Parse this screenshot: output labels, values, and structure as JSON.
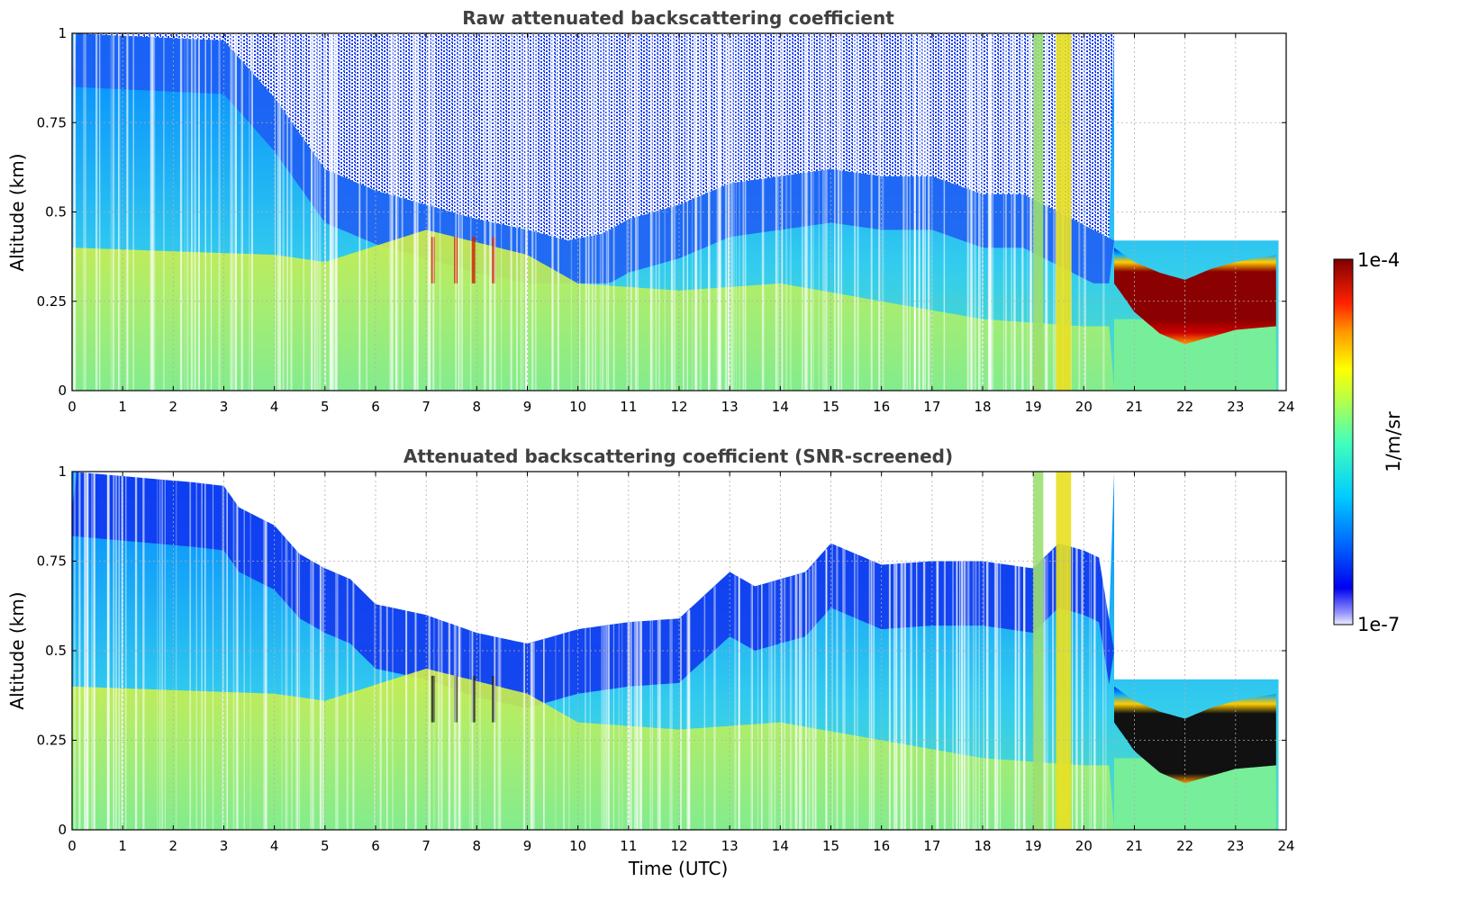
{
  "chart_data": [
    {
      "type": "heatmap",
      "panel": "top",
      "title": "Raw attenuated backscattering coefficient",
      "xlabel": "",
      "ylabel": "Altitude (km)",
      "xlim": [
        0,
        24
      ],
      "ylim": [
        0,
        1
      ],
      "xticks": [
        "0",
        "1",
        "2",
        "3",
        "4",
        "5",
        "6",
        "7",
        "8",
        "9",
        "10",
        "11",
        "12",
        "13",
        "14",
        "15",
        "16",
        "17",
        "18",
        "19",
        "20",
        "21",
        "22",
        "23",
        "24"
      ],
      "yticks": [
        "0",
        "0.25",
        "0.5",
        "0.75",
        "1"
      ],
      "grid": true,
      "noise_top": [
        [
          0,
          1.0
        ],
        [
          3,
          0.98
        ],
        [
          4,
          0.82
        ],
        [
          5,
          0.62
        ],
        [
          6,
          0.56
        ],
        [
          7,
          0.52
        ],
        [
          8,
          0.48
        ],
        [
          9,
          0.45
        ],
        [
          9.8,
          0.42
        ],
        [
          10.5,
          0.44
        ],
        [
          11,
          0.48
        ],
        [
          12,
          0.52
        ],
        [
          13,
          0.58
        ],
        [
          14,
          0.6
        ],
        [
          15,
          0.62
        ],
        [
          16,
          0.6
        ],
        [
          17,
          0.6
        ],
        [
          18,
          0.55
        ],
        [
          18.8,
          0.55
        ],
        [
          19.5,
          0.5
        ],
        [
          20.6,
          0.42
        ]
      ],
      "mixed_layer_top": [
        [
          0,
          0.4
        ],
        [
          4,
          0.38
        ],
        [
          5,
          0.36
        ],
        [
          7,
          0.45
        ],
        [
          9,
          0.38
        ],
        [
          10,
          0.3
        ],
        [
          12,
          0.28
        ],
        [
          14,
          0.3
        ],
        [
          16,
          0.25
        ],
        [
          18,
          0.2
        ],
        [
          20,
          0.18
        ]
      ],
      "cloud": {
        "x_start": 20.6,
        "x_end": 23.8,
        "base": [
          [
            20.6,
            0.3
          ],
          [
            21,
            0.22
          ],
          [
            21.5,
            0.16
          ],
          [
            22,
            0.13
          ],
          [
            22.5,
            0.15
          ],
          [
            23,
            0.17
          ],
          [
            23.8,
            0.18
          ]
        ],
        "top": [
          [
            20.6,
            0.4
          ],
          [
            21,
            0.36
          ],
          [
            21.5,
            0.33
          ],
          [
            22,
            0.31
          ],
          [
            22.5,
            0.34
          ],
          [
            23,
            0.36
          ],
          [
            23.8,
            0.38
          ]
        ]
      }
    },
    {
      "type": "heatmap",
      "panel": "bottom",
      "title": "Attenuated backscattering coefficient (SNR-screened)",
      "xlabel": "Time (UTC)",
      "ylabel": "Altitude (km)",
      "xlim": [
        0,
        24
      ],
      "ylim": [
        0,
        1
      ],
      "xticks": [
        "0",
        "1",
        "2",
        "3",
        "4",
        "5",
        "6",
        "7",
        "8",
        "9",
        "10",
        "11",
        "12",
        "13",
        "14",
        "15",
        "16",
        "17",
        "18",
        "19",
        "20",
        "21",
        "22",
        "23",
        "24"
      ],
      "yticks": [
        "0",
        "0.25",
        "0.5",
        "0.75",
        "1"
      ],
      "grid": true,
      "screen_top": [
        [
          0,
          1.0
        ],
        [
          2.4,
          0.97
        ],
        [
          3,
          0.96
        ],
        [
          3.3,
          0.9
        ],
        [
          4,
          0.85
        ],
        [
          4.5,
          0.77
        ],
        [
          5,
          0.73
        ],
        [
          5.5,
          0.7
        ],
        [
          6,
          0.63
        ],
        [
          7,
          0.6
        ],
        [
          8,
          0.55
        ],
        [
          9,
          0.52
        ],
        [
          10,
          0.56
        ],
        [
          11,
          0.58
        ],
        [
          12,
          0.59
        ],
        [
          13,
          0.72
        ],
        [
          13.5,
          0.68
        ],
        [
          14,
          0.7
        ],
        [
          14.5,
          0.72
        ],
        [
          15,
          0.8
        ],
        [
          16,
          0.74
        ],
        [
          17,
          0.75
        ],
        [
          18,
          0.75
        ],
        [
          19,
          0.73
        ],
        [
          19.5,
          0.8
        ],
        [
          20,
          0.78
        ],
        [
          20.3,
          0.76
        ],
        [
          20.6,
          0.5
        ]
      ],
      "mixed_layer_top": [
        [
          0,
          0.4
        ],
        [
          4,
          0.38
        ],
        [
          5,
          0.36
        ],
        [
          7,
          0.45
        ],
        [
          9,
          0.38
        ],
        [
          10,
          0.3
        ],
        [
          12,
          0.28
        ],
        [
          14,
          0.3
        ],
        [
          16,
          0.25
        ],
        [
          18,
          0.2
        ],
        [
          20,
          0.18
        ]
      ],
      "cloud": {
        "x_start": 20.6,
        "x_end": 23.8,
        "base": [
          [
            20.6,
            0.3
          ],
          [
            21,
            0.22
          ],
          [
            21.5,
            0.16
          ],
          [
            22,
            0.13
          ],
          [
            22.5,
            0.15
          ],
          [
            23,
            0.17
          ],
          [
            23.8,
            0.18
          ]
        ],
        "top": [
          [
            20.6,
            0.4
          ],
          [
            21,
            0.36
          ],
          [
            21.5,
            0.33
          ],
          [
            22,
            0.31
          ],
          [
            22.5,
            0.34
          ],
          [
            23,
            0.36
          ],
          [
            23.8,
            0.38
          ]
        ]
      }
    }
  ],
  "colorbar": {
    "label": "1/m/sr",
    "max_label": "1e-4",
    "min_label": "1e-7",
    "range": [
      1e-07,
      0.0001
    ],
    "scale": "log",
    "colormap": "jet"
  }
}
